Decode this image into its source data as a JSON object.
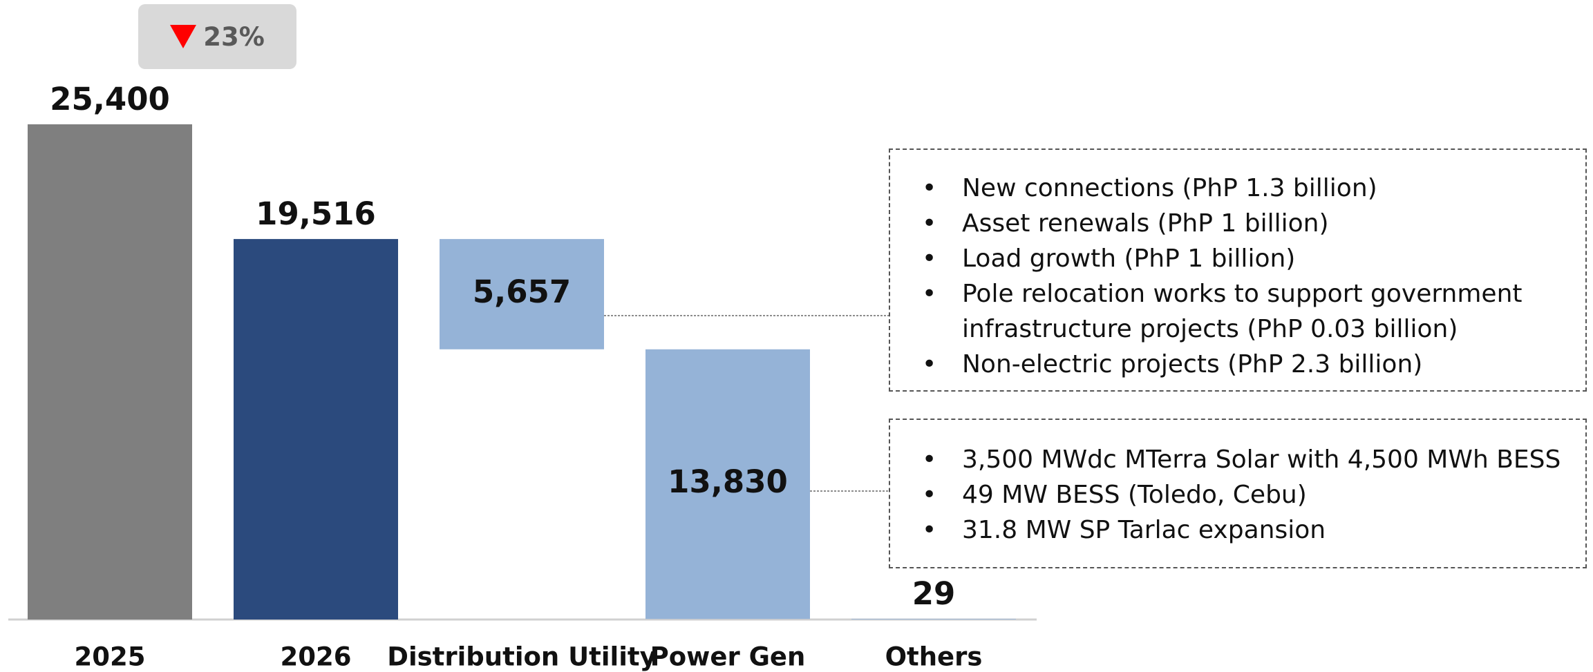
{
  "chart_data": {
    "type": "waterfall",
    "categories": [
      "2025",
      "2026",
      "Distribution Utility",
      "Power Gen",
      "Others"
    ],
    "values": [
      25400,
      19516,
      5657,
      13830,
      29
    ],
    "value_labels": [
      "25,400",
      "19,516",
      "5,657",
      "13,830",
      "29"
    ],
    "measures": [
      "total",
      "total",
      "decrease",
      "decrease",
      "decrease"
    ],
    "colors": [
      "#7f7f7f",
      "#2b4a7d",
      "#95b3d7",
      "#95b3d7",
      "#95b3d7"
    ],
    "badge": {
      "label": "23%",
      "direction": "down"
    },
    "annotations": [
      {
        "category": "Distribution Utility",
        "items": [
          "New connections (PhP 1.3 billion)",
          "Asset renewals (PhP 1 billion)",
          "Load growth (PhP 1 billion)",
          "Pole relocation works to support government infrastructure projects (PhP 0.03 billion)",
          "Non-electric projects (PhP 2.3 billion)"
        ]
      },
      {
        "category": "Power Gen",
        "items": [
          "3,500 MWdc MTerra Solar with 4,500 MWh BESS",
          "49 MW BESS (Toledo, Cebu)",
          "31.8 MW SP Tarlac expansion"
        ]
      }
    ]
  }
}
